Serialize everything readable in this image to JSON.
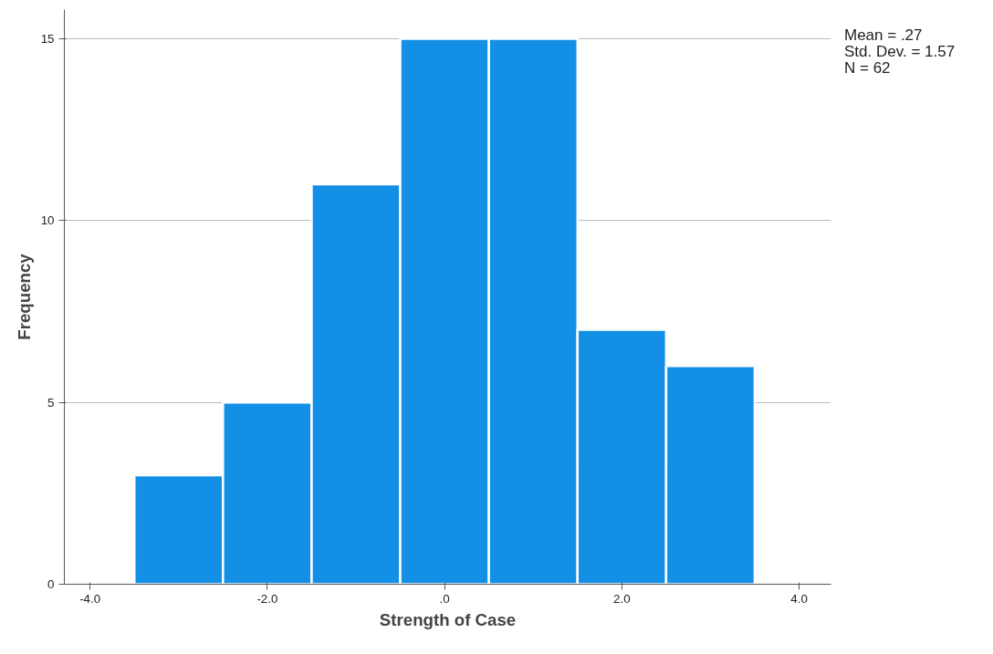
{
  "chart_data": {
    "type": "histogram",
    "xlabel": "Strength of Case",
    "ylabel": "Frequency",
    "bins": [
      -3.5,
      -2.5,
      -1.5,
      -0.5,
      0.5,
      1.5,
      2.5,
      3.5
    ],
    "values": [
      3,
      5,
      11,
      15,
      15,
      7,
      6
    ],
    "color": "#1390e6",
    "xlim": [
      -4.29,
      4.36
    ],
    "ylim": [
      0,
      15.8
    ],
    "xticks": [
      {
        "value": -4,
        "label": "-4.0"
      },
      {
        "value": -2,
        "label": "-2.0"
      },
      {
        "value": 0,
        "label": ".0"
      },
      {
        "value": 2,
        "label": "2.0"
      },
      {
        "value": 4,
        "label": "4.0"
      }
    ],
    "yticks": [
      0,
      5,
      10,
      15
    ],
    "grid": "y",
    "annotations": [
      "Mean = .27",
      "Std. Dev. = 1.57",
      "N = 62"
    ]
  }
}
